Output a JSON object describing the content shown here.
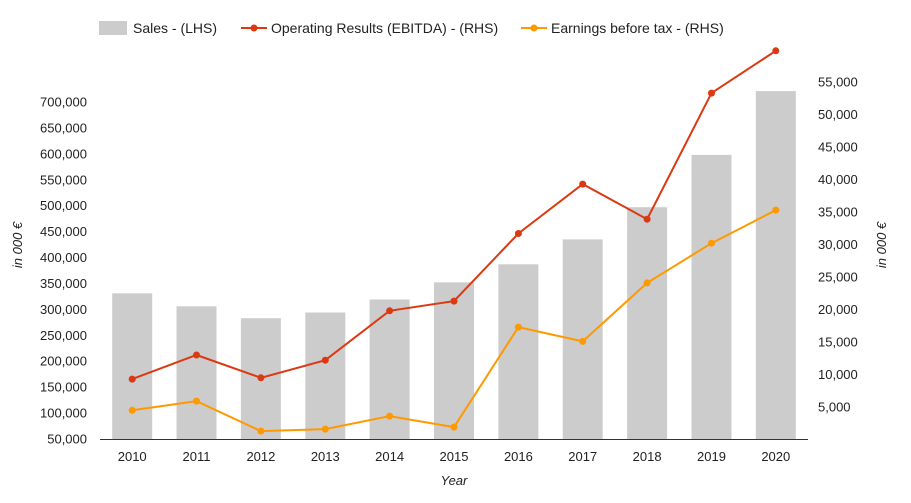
{
  "chart_data": {
    "type": "bar",
    "x_title": "Year",
    "left_axis": {
      "title": "in 000 €",
      "min": 50000,
      "max": 700000,
      "ticks": [
        50000,
        100000,
        150000,
        200000,
        250000,
        300000,
        350000,
        400000,
        450000,
        500000,
        550000,
        600000,
        650000,
        700000
      ],
      "tick_labels": [
        "50,000",
        "100,000",
        "150,000",
        "200,000",
        "250,000",
        "300,000",
        "350,000",
        "400,000",
        "450,000",
        "500,000",
        "550,000",
        "600,000",
        "650,000",
        "700,000"
      ]
    },
    "right_axis": {
      "title": "in 000 €",
      "min": 0,
      "max": 55000,
      "ticks": [
        5000,
        10000,
        15000,
        20000,
        25000,
        30000,
        35000,
        40000,
        45000,
        50000,
        55000
      ],
      "tick_labels": [
        "5,000",
        "10,000",
        "15,000",
        "20,000",
        "25,000",
        "30,000",
        "35,000",
        "40,000",
        "45,000",
        "50,000",
        "55,000"
      ]
    },
    "categories": [
      "2010",
      "2011",
      "2012",
      "2013",
      "2014",
      "2015",
      "2016",
      "2017",
      "2018",
      "2019",
      "2020"
    ],
    "legend_position": "top",
    "grid": false,
    "series": [
      {
        "name": "Sales - (LHS)",
        "type": "bar",
        "axis": "left",
        "color": "#cccccc",
        "values": [
          331000,
          306000,
          283000,
          294000,
          319000,
          352000,
          387000,
          435000,
          497000,
          598000,
          721000
        ]
      },
      {
        "name": "Operating Results (EBITDA) - (RHS)",
        "type": "line",
        "axis": "right",
        "color": "#dc3912",
        "values": [
          9300,
          13000,
          9500,
          12200,
          19800,
          21300,
          31700,
          39300,
          33900,
          53300,
          59800
        ]
      },
      {
        "name": "Earnings before tax - (RHS)",
        "type": "line",
        "axis": "right",
        "color": "#ff9900",
        "values": [
          4500,
          5900,
          1300,
          1600,
          3600,
          1900,
          17300,
          15100,
          24100,
          30200,
          35300
        ]
      }
    ]
  }
}
